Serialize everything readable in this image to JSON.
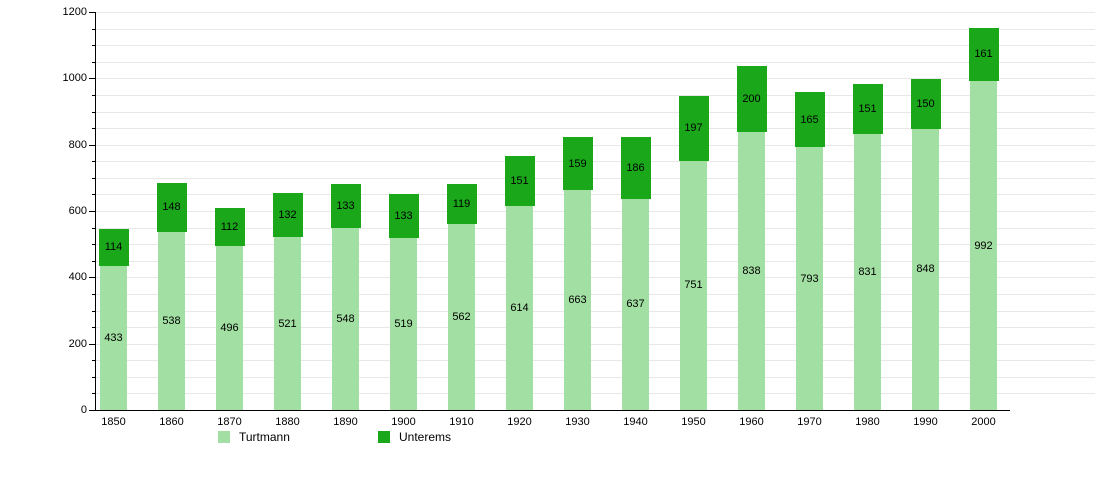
{
  "chart_data": {
    "type": "bar",
    "stacked": true,
    "title": "",
    "xlabel": "",
    "ylabel": "",
    "categories": [
      "1850",
      "1860",
      "1870",
      "1880",
      "1890",
      "1900",
      "1910",
      "1920",
      "1930",
      "1940",
      "1950",
      "1960",
      "1970",
      "1980",
      "1990",
      "2000"
    ],
    "series": [
      {
        "name": "Turtmann",
        "color": "#a2dfa2",
        "values": [
          433,
          538,
          496,
          521,
          548,
          519,
          562,
          614,
          663,
          637,
          751,
          838,
          793,
          831,
          848,
          992
        ]
      },
      {
        "name": "Unterems",
        "color": "#1aa81a",
        "values": [
          114,
          148,
          112,
          132,
          133,
          133,
          119,
          151,
          159,
          186,
          197,
          200,
          165,
          151,
          150,
          161
        ]
      }
    ],
    "ylim": [
      0,
      1200
    ],
    "y_major_ticks": [
      0,
      200,
      400,
      600,
      800,
      1000,
      1200
    ],
    "y_minor_step": 50,
    "grid": "horizontal minor gridlines every 50, light gray, full plot width",
    "legend_position": "bottom",
    "value_labels": "centered inside each stacked segment",
    "colors": {
      "turtmann": "#a2dfa2",
      "unterems": "#1aa81a",
      "gridline": "#e8e8e8",
      "axis": "#000000",
      "text": "#000000",
      "background": "#ffffff"
    }
  }
}
